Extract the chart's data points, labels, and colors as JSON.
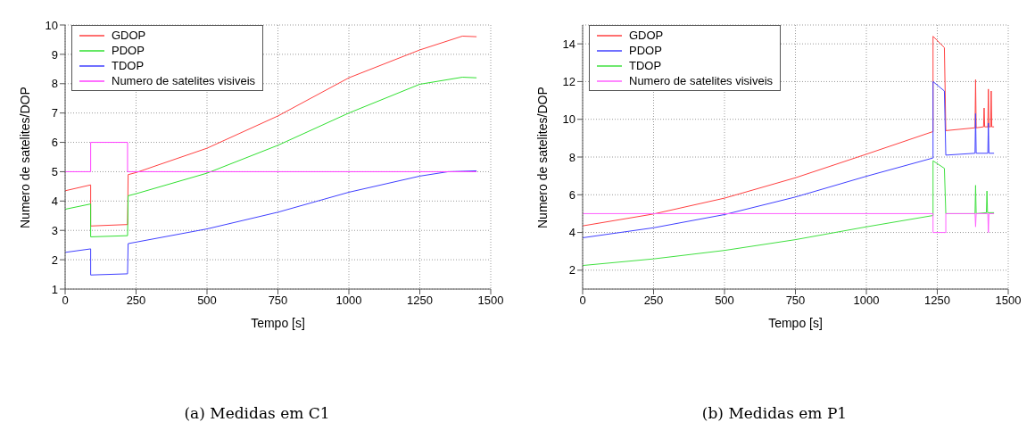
{
  "chart_data": [
    {
      "type": "line",
      "title": "(a) Medidas em C1",
      "xlabel": "Tempo [s]",
      "ylabel": "Numero de satelites/DOP",
      "xlim": [
        0,
        1500
      ],
      "xticks": [
        0,
        250,
        500,
        750,
        1000,
        1250,
        1500
      ],
      "ylim": [
        1,
        10
      ],
      "yticks": [
        1,
        2,
        3,
        4,
        5,
        6,
        7,
        8,
        9,
        10
      ],
      "grid": true,
      "legend": "top left",
      "series": [
        {
          "name": "GDOP",
          "color": "#ff4040",
          "x": [
            0,
            90,
            90,
            220,
            222,
            250,
            500,
            750,
            1000,
            1250,
            1400,
            1450
          ],
          "values": [
            4.35,
            4.55,
            3.15,
            3.2,
            4.9,
            4.97,
            5.8,
            6.9,
            8.2,
            9.15,
            9.62,
            9.6
          ]
        },
        {
          "name": "PDOP",
          "color": "#30e030",
          "x": [
            0,
            90,
            90,
            220,
            222,
            250,
            500,
            750,
            1000,
            1250,
            1400,
            1450
          ],
          "values": [
            3.72,
            3.9,
            2.78,
            2.82,
            4.18,
            4.25,
            4.95,
            5.9,
            7.0,
            7.98,
            8.22,
            8.2
          ]
        },
        {
          "name": "TDOP",
          "color": "#4040ff",
          "x": [
            0,
            90,
            90,
            220,
            222,
            250,
            500,
            750,
            1000,
            1250,
            1350,
            1450
          ],
          "values": [
            2.25,
            2.37,
            1.48,
            1.52,
            2.55,
            2.6,
            3.05,
            3.62,
            4.3,
            4.85,
            5.0,
            5.03
          ]
        },
        {
          "name": "Numero de satelites visiveis",
          "color": "#ff40ff",
          "x": [
            0,
            90,
            90,
            220,
            220,
            1450
          ],
          "values": [
            5,
            5,
            6,
            6,
            5,
            5
          ]
        }
      ]
    },
    {
      "type": "line",
      "title": "(b) Medidas em P1",
      "xlabel": "Tempo [s]",
      "ylabel": "Numero de satelites/DOP",
      "xlim": [
        0,
        1500
      ],
      "xticks": [
        0,
        250,
        500,
        750,
        1000,
        1250,
        1500
      ],
      "ylim": [
        1,
        15
      ],
      "yticks": [
        2,
        4,
        6,
        8,
        10,
        12,
        14
      ],
      "grid": true,
      "legend": "top left",
      "series": [
        {
          "name": "GDOP",
          "color": "#ff4040",
          "x": [
            0,
            250,
            500,
            750,
            1000,
            1235,
            1235,
            1275,
            1280,
            1383,
            1385,
            1387,
            1413,
            1415,
            1417,
            1428,
            1430,
            1432,
            1438,
            1440,
            1442,
            1450
          ],
          "values": [
            4.35,
            4.98,
            5.82,
            6.9,
            8.15,
            9.35,
            14.4,
            13.8,
            9.4,
            9.55,
            12.1,
            9.55,
            9.6,
            10.6,
            9.6,
            9.6,
            11.6,
            9.6,
            9.6,
            11.5,
            9.6,
            9.6
          ]
        },
        {
          "name": "PDOP",
          "color": "#4040ff",
          "x": [
            0,
            250,
            500,
            750,
            1000,
            1235,
            1235,
            1275,
            1280,
            1383,
            1385,
            1387,
            1428,
            1430,
            1432,
            1450
          ],
          "values": [
            3.72,
            4.25,
            4.95,
            5.88,
            6.98,
            7.95,
            12.0,
            11.5,
            8.1,
            8.2,
            10.3,
            8.2,
            8.2,
            9.8,
            8.2,
            8.2
          ]
        },
        {
          "name": "TDOP",
          "color": "#40e040",
          "x": [
            0,
            250,
            500,
            750,
            1000,
            1235,
            1235,
            1275,
            1280,
            1383,
            1385,
            1387,
            1423,
            1425,
            1427,
            1450
          ],
          "values": [
            2.25,
            2.6,
            3.05,
            3.62,
            4.3,
            4.9,
            7.8,
            7.4,
            5.0,
            5.0,
            6.5,
            5.0,
            5.05,
            6.2,
            5.05,
            5.05
          ]
        },
        {
          "name": "Numero de satelites visiveis",
          "color": "#ff60ff",
          "x": [
            0,
            1235,
            1235,
            1280,
            1280,
            1383,
            1385,
            1387,
            1428,
            1430,
            1432,
            1450
          ],
          "values": [
            5,
            5,
            4,
            4,
            5,
            5,
            4.3,
            5,
            5,
            4,
            5,
            5
          ]
        }
      ]
    }
  ]
}
